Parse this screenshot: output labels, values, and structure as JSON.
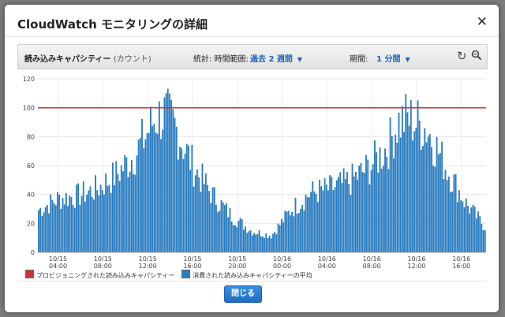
{
  "dialog": {
    "title": "CloudWatch モニタリングの詳細",
    "close_icon": "close-icon",
    "close_button_label": "閉じる"
  },
  "toolbar": {
    "metric_name": "読み込みキャパシティー",
    "metric_unit": "(カウント)",
    "statistic_label": "統計: 時間範囲:",
    "statistic_value": "過去 2 週間",
    "period_label": "期間:",
    "period_value": "1 分間",
    "refresh_icon": "refresh-icon",
    "zoom_icon": "zoom-icon"
  },
  "legend": {
    "provisioned": "プロビジョニングされた読み込みキャパシティー",
    "consumed": "消費された読み込みキャパシティーの平均"
  },
  "colors": {
    "bar": "#2a7cc0",
    "threshold": "#c0393b",
    "button": "#1f6dc2"
  },
  "chart_data": {
    "type": "bar",
    "ylim": [
      0,
      120
    ],
    "yticks": [
      0,
      20,
      40,
      60,
      80,
      100,
      120
    ],
    "grid": true,
    "x_tick_labels": [
      [
        "10/15",
        "04:00"
      ],
      [
        "10/15",
        "08:00"
      ],
      [
        "10/15",
        "12:00"
      ],
      [
        "10/15",
        "16:00"
      ],
      [
        "10/15",
        "20:00"
      ],
      [
        "10/16",
        "00:00"
      ],
      [
        "10/16",
        "04:00"
      ],
      [
        "10/16",
        "08:00"
      ],
      [
        "10/16",
        "12:00"
      ],
      [
        "10/16",
        "16:00"
      ]
    ],
    "series": [
      {
        "name": "プロビジョニングされた読み込みキャパシティー",
        "type": "line",
        "value": 100
      },
      {
        "name": "消費された読み込みキャパシティーの平均",
        "type": "bar",
        "x_hours": [
          0,
          2,
          4,
          6,
          8,
          10,
          12,
          13,
          14,
          16,
          18,
          20,
          22,
          24,
          26,
          28,
          30,
          32,
          34,
          36,
          37,
          38,
          40,
          42,
          44,
          46
        ],
        "y_envelope": [
          30,
          38,
          40,
          45,
          55,
          70,
          95,
          98,
          90,
          60,
          40,
          25,
          15,
          12,
          30,
          42,
          45,
          50,
          60,
          75,
          92,
          95,
          88,
          60,
          35,
          18
        ]
      }
    ]
  }
}
